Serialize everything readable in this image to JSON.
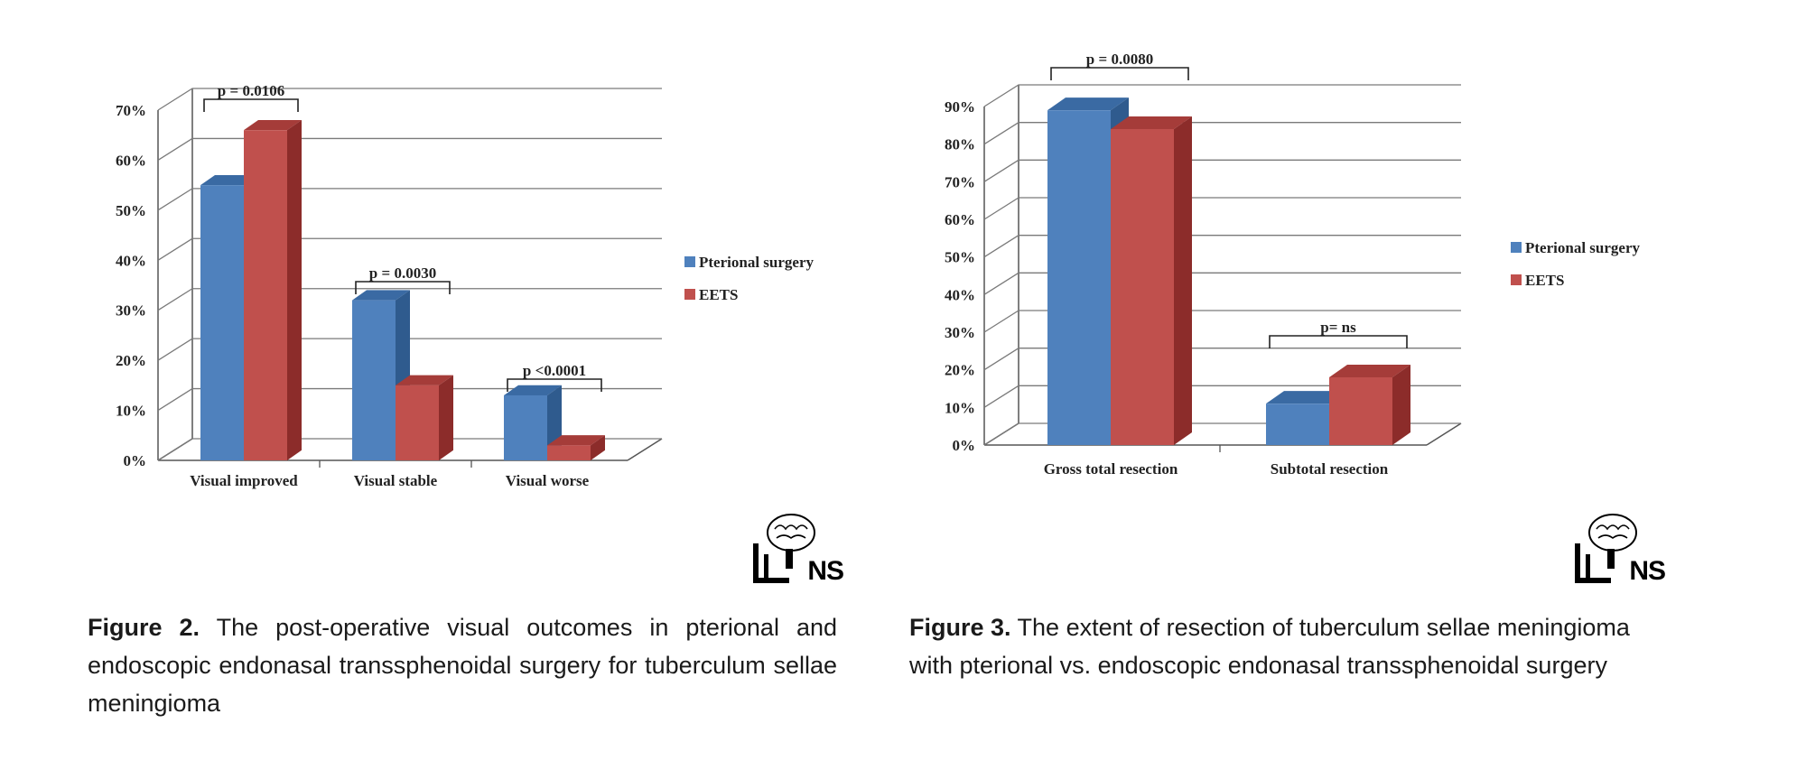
{
  "chart_data": [
    {
      "type": "bar",
      "categories": [
        "Visual improved",
        "Visual stable",
        "Visual worse"
      ],
      "series": [
        {
          "name": "Pterional surgery",
          "values": [
            55,
            32,
            13
          ]
        },
        {
          "name": "EETS",
          "values": [
            66,
            15,
            3
          ]
        }
      ],
      "yticks": [
        "0%",
        "10%",
        "20%",
        "30%",
        "40%",
        "50%",
        "60%",
        "70%"
      ],
      "ylim": [
        0,
        70
      ],
      "annotations": [
        "p = 0.0106",
        "p = 0.0030",
        "p <0.0001"
      ],
      "legend_position": "right",
      "grid": true
    },
    {
      "type": "bar",
      "categories": [
        "Gross total resection",
        "Subtotal resection"
      ],
      "series": [
        {
          "name": "Pterional surgery",
          "values": [
            89,
            11
          ]
        },
        {
          "name": "EETS",
          "values": [
            84,
            18
          ]
        }
      ],
      "yticks": [
        "0%",
        "10%",
        "20%",
        "30%",
        "40%",
        "50%",
        "60%",
        "70%",
        "80%",
        "90%"
      ],
      "ylim": [
        0,
        90
      ],
      "annotations": [
        "p = 0.0080",
        "p= ns"
      ],
      "legend_position": "right",
      "grid": true
    }
  ],
  "captions": [
    {
      "label": "Figure 2.",
      "text": "The post-operative visual outcomes in pterional and endoscopic endonasal transsphenoidal surgery for tuberculum sellae meningioma"
    },
    {
      "label": "Figure 3.",
      "text": "The extent of resection of tuberculum sellae meningioma with pterional vs. endoscopic endonasal transsphenoidal surgery"
    }
  ],
  "logo": {
    "text": "NS"
  },
  "colors": {
    "pterional_front": "#4f81bd",
    "pterional_side": "#2f5b8e",
    "pterional_top": "#3a6aa3",
    "eets_front": "#c0504d",
    "eets_side": "#8c2c2a",
    "eets_top": "#a53c39",
    "grid": "#7a7a7a",
    "axis": "#555555"
  }
}
